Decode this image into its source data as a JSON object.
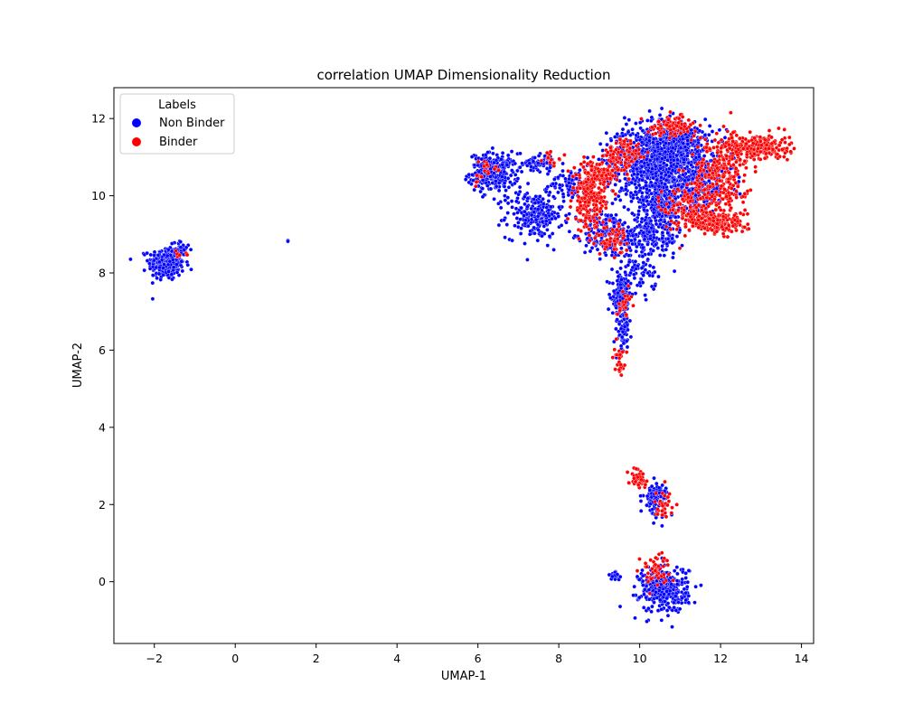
{
  "chart_data": {
    "type": "scatter",
    "title": "correlation UMAP Dimensionality Reduction",
    "xlabel": "UMAP-1",
    "ylabel": "UMAP-2",
    "xlim": [
      -3,
      14.3
    ],
    "ylim": [
      -1.6,
      12.8
    ],
    "xticks": [
      -2,
      0,
      2,
      4,
      6,
      8,
      10,
      12,
      14
    ],
    "yticks": [
      0,
      2,
      4,
      6,
      8,
      10,
      12
    ],
    "grid": false,
    "legend": {
      "title": "Labels",
      "placement": "top-left",
      "entries": [
        {
          "name": "Non Binder",
          "color": "#0000ff"
        },
        {
          "name": "Binder",
          "color": "#ff0000"
        }
      ]
    },
    "series": [
      {
        "name": "Non Binder",
        "color": "#0000ff",
        "clusters": [
          {
            "cx": -1.7,
            "cy": 8.25,
            "sx": 0.22,
            "sy": 0.22,
            "n": 260
          },
          {
            "cx": -1.35,
            "cy": 8.6,
            "sx": 0.12,
            "sy": 0.12,
            "n": 40
          },
          {
            "cx": 1.3,
            "cy": 8.82,
            "sx": 0.01,
            "sy": 0.01,
            "n": 2
          },
          {
            "cx": 6.4,
            "cy": 10.6,
            "sx": 0.3,
            "sy": 0.25,
            "n": 260
          },
          {
            "cx": 7.5,
            "cy": 10.85,
            "sx": 0.2,
            "sy": 0.12,
            "n": 60
          },
          {
            "cx": 7.4,
            "cy": 9.5,
            "sx": 0.35,
            "sy": 0.3,
            "n": 240
          },
          {
            "cx": 8.3,
            "cy": 10.3,
            "sx": 0.25,
            "sy": 0.2,
            "n": 80
          },
          {
            "cx": 9.2,
            "cy": 9.0,
            "sx": 0.3,
            "sy": 0.3,
            "n": 180
          },
          {
            "cx": 10.2,
            "cy": 10.9,
            "sx": 0.5,
            "sy": 0.45,
            "n": 700
          },
          {
            "cx": 11.0,
            "cy": 11.3,
            "sx": 0.4,
            "sy": 0.35,
            "n": 400
          },
          {
            "cx": 10.6,
            "cy": 9.8,
            "sx": 0.35,
            "sy": 0.4,
            "n": 350
          },
          {
            "cx": 11.5,
            "cy": 10.3,
            "sx": 0.4,
            "sy": 0.35,
            "n": 250
          },
          {
            "cx": 10.2,
            "cy": 8.9,
            "sx": 0.4,
            "sy": 0.25,
            "n": 200
          },
          {
            "cx": 9.55,
            "cy": 7.4,
            "sx": 0.12,
            "sy": 0.3,
            "n": 140
          },
          {
            "cx": 9.6,
            "cy": 6.5,
            "sx": 0.07,
            "sy": 0.3,
            "n": 70
          },
          {
            "cx": 10.0,
            "cy": 8.0,
            "sx": 0.2,
            "sy": 0.25,
            "n": 70
          },
          {
            "cx": 10.4,
            "cy": 2.15,
            "sx": 0.15,
            "sy": 0.2,
            "n": 110
          },
          {
            "cx": 10.6,
            "cy": -0.2,
            "sx": 0.3,
            "sy": 0.3,
            "n": 360
          },
          {
            "cx": 9.4,
            "cy": 0.15,
            "sx": 0.1,
            "sy": 0.05,
            "n": 20
          }
        ]
      },
      {
        "name": "Binder",
        "color": "#ff0000",
        "clusters": [
          {
            "cx": 8.75,
            "cy": 9.9,
            "sx": 0.2,
            "sy": 0.4,
            "n": 200
          },
          {
            "cx": 9.0,
            "cy": 10.6,
            "sx": 0.25,
            "sy": 0.15,
            "n": 80
          },
          {
            "cx": 9.6,
            "cy": 11.0,
            "sx": 0.25,
            "sy": 0.25,
            "n": 100
          },
          {
            "cx": 9.3,
            "cy": 8.9,
            "sx": 0.2,
            "sy": 0.2,
            "n": 60
          },
          {
            "cx": 10.8,
            "cy": 11.8,
            "sx": 0.3,
            "sy": 0.12,
            "n": 100
          },
          {
            "cx": 12.0,
            "cy": 10.5,
            "sx": 0.35,
            "sy": 0.5,
            "n": 280
          },
          {
            "cx": 12.9,
            "cy": 11.25,
            "sx": 0.4,
            "sy": 0.18,
            "n": 250
          },
          {
            "cx": 11.9,
            "cy": 9.3,
            "sx": 0.35,
            "sy": 0.15,
            "n": 200
          },
          {
            "cx": 11.2,
            "cy": 9.7,
            "sx": 0.3,
            "sy": 0.3,
            "n": 120
          },
          {
            "cx": 6.1,
            "cy": 10.6,
            "sx": 0.15,
            "sy": 0.2,
            "n": 20
          },
          {
            "cx": 7.8,
            "cy": 11.0,
            "sx": 0.12,
            "sy": 0.08,
            "n": 15
          },
          {
            "cx": 9.5,
            "cy": 5.8,
            "sx": 0.06,
            "sy": 0.2,
            "n": 30
          },
          {
            "cx": 9.6,
            "cy": 7.2,
            "sx": 0.1,
            "sy": 0.2,
            "n": 25
          },
          {
            "cx": 9.95,
            "cy": 2.7,
            "sx": 0.12,
            "sy": 0.12,
            "n": 40
          },
          {
            "cx": 10.6,
            "cy": 2.0,
            "sx": 0.12,
            "sy": 0.2,
            "n": 30
          },
          {
            "cx": 10.4,
            "cy": 0.3,
            "sx": 0.2,
            "sy": 0.2,
            "n": 50
          },
          {
            "cx": -1.35,
            "cy": 8.5,
            "sx": 0.1,
            "sy": 0.08,
            "n": 6
          }
        ]
      }
    ]
  }
}
